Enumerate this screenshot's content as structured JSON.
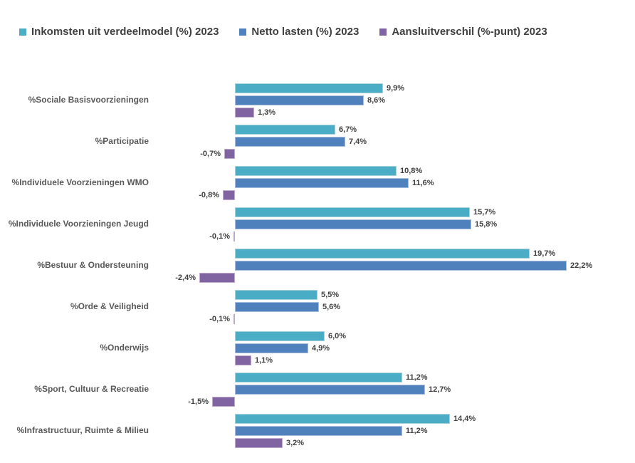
{
  "chart_data": {
    "type": "bar",
    "orientation": "horizontal",
    "title": "",
    "xlabel": "",
    "ylabel": "",
    "grid": false,
    "legend_position": "top",
    "xlim": [
      -2.4,
      22.2
    ],
    "value_label_color": "#404040",
    "category_label_color": "#595959",
    "categories": [
      "%Sociale Basisvoorzieningen",
      "%Participatie",
      "%Individuele Voorzieningen WMO",
      "%Individuele Voorzieningen Jeugd",
      "%Bestuur & Ondersteuning",
      "%Orde & Veiligheid",
      "%Onderwijs",
      "%Sport, Cultuur & Recreatie",
      "%Infrastructuur, Ruimte & Milieu"
    ],
    "series": [
      {
        "key": "inkomsten-uit-verdeelmodel",
        "name": "Inkomsten uit verdeelmodel (%) 2023",
        "color": "#4BACC6",
        "border_color": "#A8D1DC",
        "values": [
          9.9,
          6.7,
          10.8,
          15.7,
          19.7,
          5.5,
          6.0,
          11.2,
          14.4
        ],
        "labels": [
          "9,9%",
          "6,7%",
          "10,8%",
          "15,7%",
          "19,7%",
          "5,5%",
          "6,0%",
          "11,2%",
          "14,4%"
        ]
      },
      {
        "key": "netto-lasten",
        "name": "Netto lasten (%) 2023",
        "color": "#4F81BD",
        "border_color": "#A7BDDB",
        "values": [
          8.6,
          7.4,
          11.6,
          15.8,
          22.2,
          5.6,
          4.9,
          12.7,
          11.2
        ],
        "labels": [
          "8,6%",
          "7,4%",
          "11,6%",
          "15,8%",
          "22,2%",
          "5,6%",
          "4,9%",
          "12,7%",
          "11,2%"
        ]
      },
      {
        "key": "aansluitverschil",
        "name": "Aansluitverschil (%-punt) 2023",
        "color": "#8064A2",
        "border_color": "#BFA8D1",
        "values": [
          1.3,
          -0.7,
          -0.8,
          -0.1,
          -2.4,
          -0.1,
          1.1,
          -1.5,
          3.2
        ],
        "labels": [
          "1,3%",
          "-0,7%",
          "-0,8%",
          "-0,1%",
          "-2,4%",
          "-0,1%",
          "1,1%",
          "-1,5%",
          "3,2%"
        ]
      }
    ]
  }
}
